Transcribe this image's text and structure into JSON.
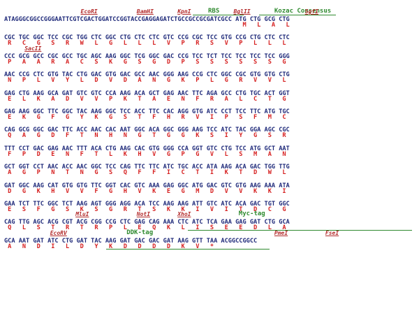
{
  "colors": {
    "dna": "#1f2a7a",
    "amino_acid": "#d62020",
    "restriction_site": "#b32b2b",
    "feature": "#2f8a2f",
    "background": "#ffffff"
  },
  "blocks": [
    {
      "dna": "ATAGGGCGGCCGGGAATTCGTCGACTGGATCCGGTACCGAGGAGATCTGCCGCCGCGATCGCC ATG CTG GCG CTG",
      "aa": "                                                                  M   L   A   L",
      "labels": [
        {
          "text": "EcoRI",
          "col": 15,
          "type": "site"
        },
        {
          "text": "BamHI",
          "col": 26,
          "type": "site"
        },
        {
          "text": "KpnI",
          "col": 34,
          "type": "site"
        },
        {
          "text": "RBS",
          "col": 40,
          "type": "feature",
          "line_cols": [
            37,
            47
          ]
        },
        {
          "text": "BglII",
          "col": 45,
          "type": "site"
        },
        {
          "text": "Kozac Consensus",
          "col": 53,
          "type": "feature",
          "line_cols": [
            50,
            65
          ]
        },
        {
          "text": "SgfI",
          "col": 59,
          "type": "site"
        }
      ]
    },
    {
      "dna": "CGC TGC GGC TCC CGC TGG CTC GGC CTG CTC CTC GTC CCG CGC TCC GTG CCG CTG CTC CTC",
      "aa": " R   C   G   S   R   W   L   G   L   L   L   V   P   R   S   V   P   L   L   L ",
      "labels": []
    },
    {
      "dna": "CCC GCG GCC CGC GCC TGC AGC AAG GGC TCG GGC GAC CCG TCC TCT TCC TCC TCC TCC GGG",
      "aa": " P   A   A   R   A   C   S   K   G   S   G   D   P   S   S   S   S   S   S   G ",
      "labels": [
        {
          "text": "SacII",
          "col": 4,
          "type": "site"
        }
      ]
    },
    {
      "dna": "AAC CCG CTC GTG TAC CTG GAC GTG GAC GCC AAC GGG AAG CCG CTC GGC CGC GTG GTG CTG",
      "aa": " N   P   L   V   Y   L   D   V   D   A   N   G   K   P   L   G   R   V   V   L ",
      "labels": []
    },
    {
      "dna": "GAG CTG AAG GCA GAT GTC GTC CCA AAG ACA GCT GAG AAC TTC AGA GCC CTG TGC ACT GGT",
      "aa": " E   L   K   A   D   V   V   P   K   T   A   E   N   F   R   A   L   C   T   G ",
      "labels": []
    },
    {
      "dna": "GAG AAG GGC TTC GGC TAC AAG GGC TCC ACC TTC CAC AGG GTG ATC CCT TCC TTC ATG TGC",
      "aa": " E   K   G   F   G   Y   K   G   S   T   F   H   R   V   I   P   S   F   M   C ",
      "labels": []
    },
    {
      "dna": "CAG GCG GGC GAC TTC ACC AAC CAC AAT GGC ACA GGC GGG AAG TCC ATC TAC GGA AGC CGC",
      "aa": " Q   A   G   D   F   T   N   H   N   G   T   G   G   K   S   I   Y   G   S   R ",
      "labels": []
    },
    {
      "dna": "TTT CCT GAC GAG AAC TTT ACA CTG AAG CAC GTG GGG CCA GGT GTC CTG TCC ATG GCT AAT",
      "aa": " F   P   D   E   N   F   T   L   K   H   V   G   P   G   V   L   S   M   A   N ",
      "labels": []
    },
    {
      "dna": "GCT GGT CCT AAC ACC AAC GGC TCC CAG TTC TTC ATC TGC ACC ATA AAG ACA GAC TGG TTG",
      "aa": " A   G   P   N   T   N   G   S   Q   F   F   I   C   T   I   K   T   D   W   L ",
      "labels": []
    },
    {
      "dna": "GAT GGC AAG CAT GTG GTG TTC GGT CAC GTC AAA GAG GGC ATG GAC GTC GTG AAG AAA ATA",
      "aa": " D   G   K   H   V   V   F   G   H   V   K   E   G   M   D   V   V   K   K   I ",
      "labels": []
    },
    {
      "dna": "GAA TCT TTC GGC TCT AAG AGT GGG AGG ACA TCC AAG AAG ATT GTC ATC ACA GAC TGT GGC",
      "aa": " E   S   F   G   S   K   S   G   R   T   S   K   K   I   V   I   T   D   C   G ",
      "labels": []
    },
    {
      "dna": "CAG TTG AGC ACG CGT ACG CGG CCG CTC GAG CAG AAA CTC ATC TCA GAA GAG GAT CTG GCA",
      "aa": " Q   L   S   T   R   T   R   P   L   E   Q   K   L   I   S   E   E   D   L   A ",
      "labels": [
        {
          "text": "MluI",
          "col": 14,
          "type": "site"
        },
        {
          "text": "NotI",
          "col": 26,
          "type": "site"
        },
        {
          "text": "XhoI",
          "col": 34,
          "type": "site"
        },
        {
          "text": "Myc-tag",
          "col": 46,
          "type": "feature",
          "line_cols": [
            36,
            80
          ]
        }
      ]
    },
    {
      "dna": "GCA AAT GAT ATC CTG GAT TAC AAG GAT GAC GAC GAT AAG GTT TAA ACGGCCGGCC",
      "aa": " A   N   D   I   L   D   Y   K   D   D   D   D   K   V   *  ",
      "labels": [
        {
          "text": "EcoRV",
          "col": 9,
          "type": "site"
        },
        {
          "text": "DDK-tag",
          "col": 24,
          "type": "feature",
          "line_cols": [
            20,
            52
          ]
        },
        {
          "text": "PmeI",
          "col": 53,
          "type": "site"
        },
        {
          "text": "FseI",
          "col": 63,
          "type": "site"
        }
      ]
    }
  ]
}
